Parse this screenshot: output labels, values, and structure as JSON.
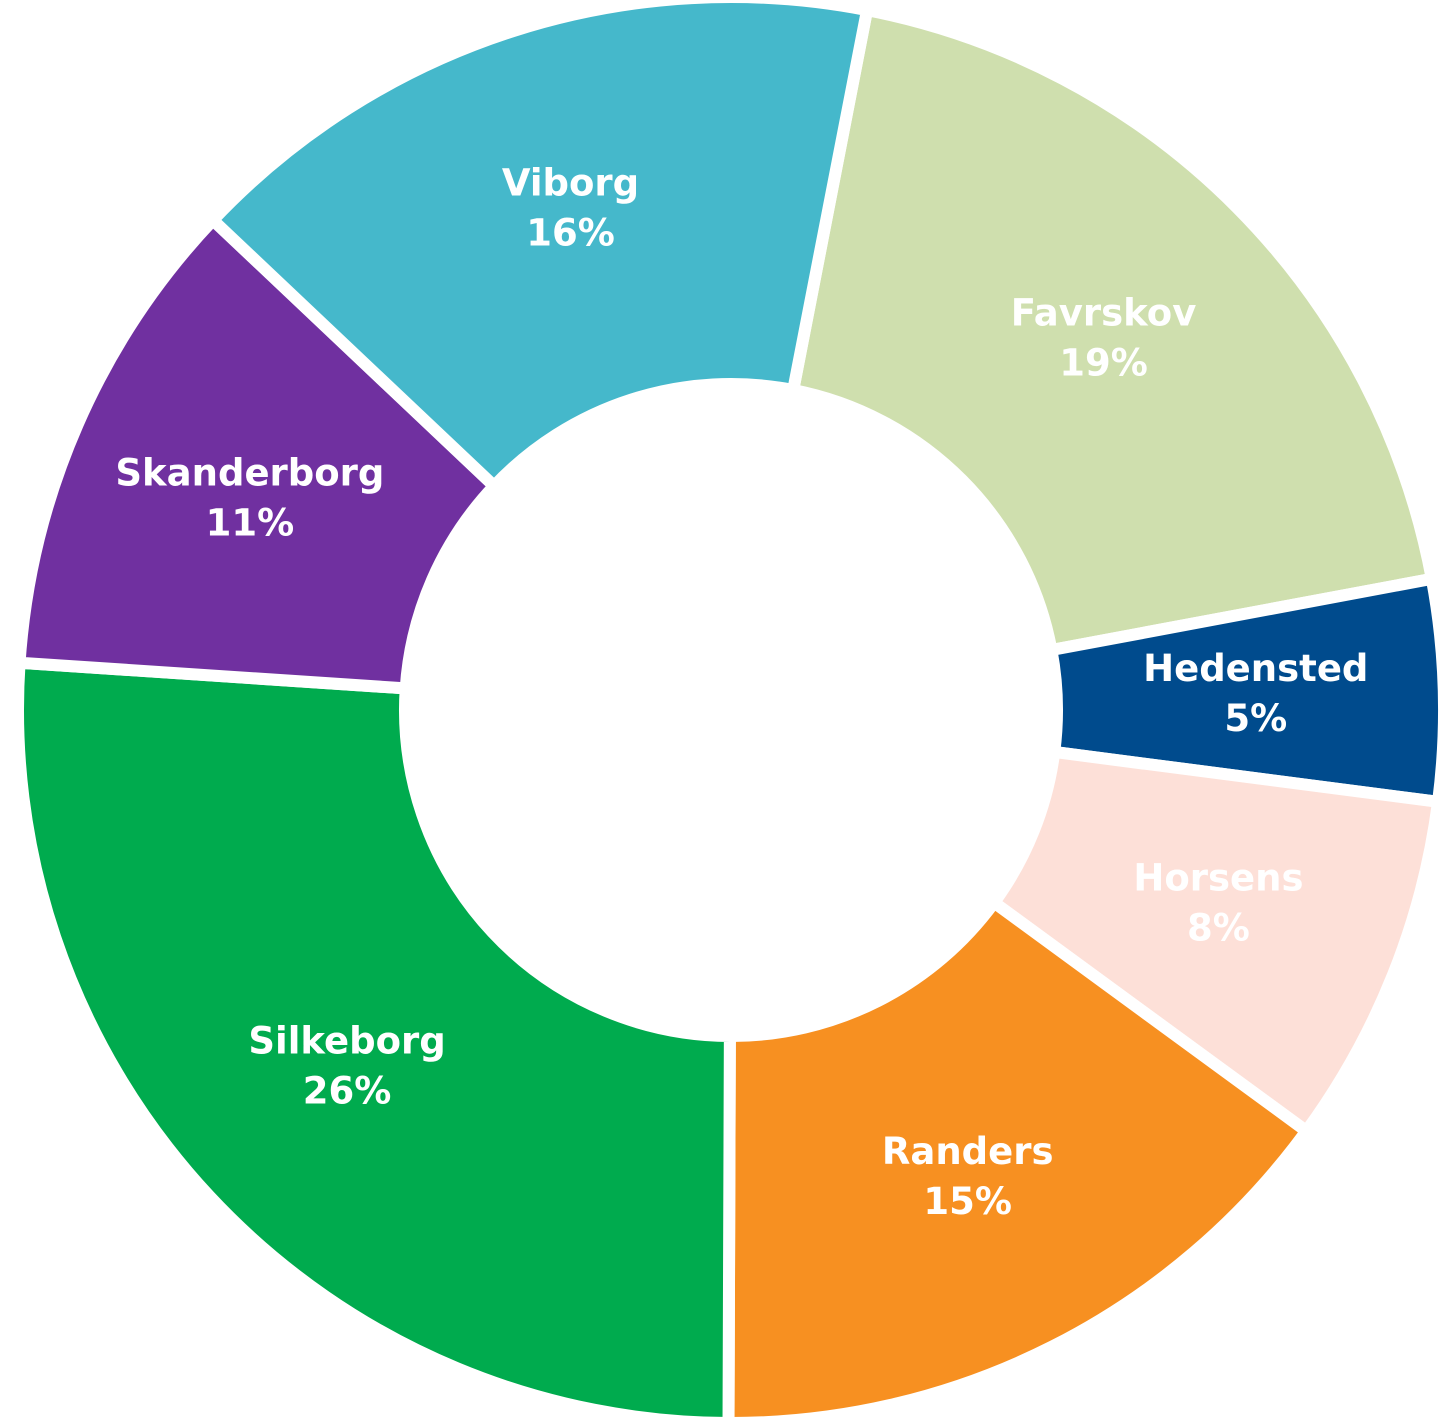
{
  "chart_data": {
    "type": "pie",
    "categories": [
      "Favrskov",
      "Hedensted",
      "Horsens",
      "Randers",
      "Silkeborg",
      "Skanderborg",
      "Viborg"
    ],
    "values": [
      19,
      5,
      8,
      15,
      26,
      11,
      16
    ],
    "value_labels": [
      "19%",
      "5%",
      "8%",
      "15%",
      "26%",
      "11%",
      "16%"
    ],
    "colors": [
      "#cfdfae",
      "#004b8d",
      "#fde0d8",
      "#f79021",
      "#00ab4e",
      "#7030a0",
      "#45b8cb"
    ]
  }
}
